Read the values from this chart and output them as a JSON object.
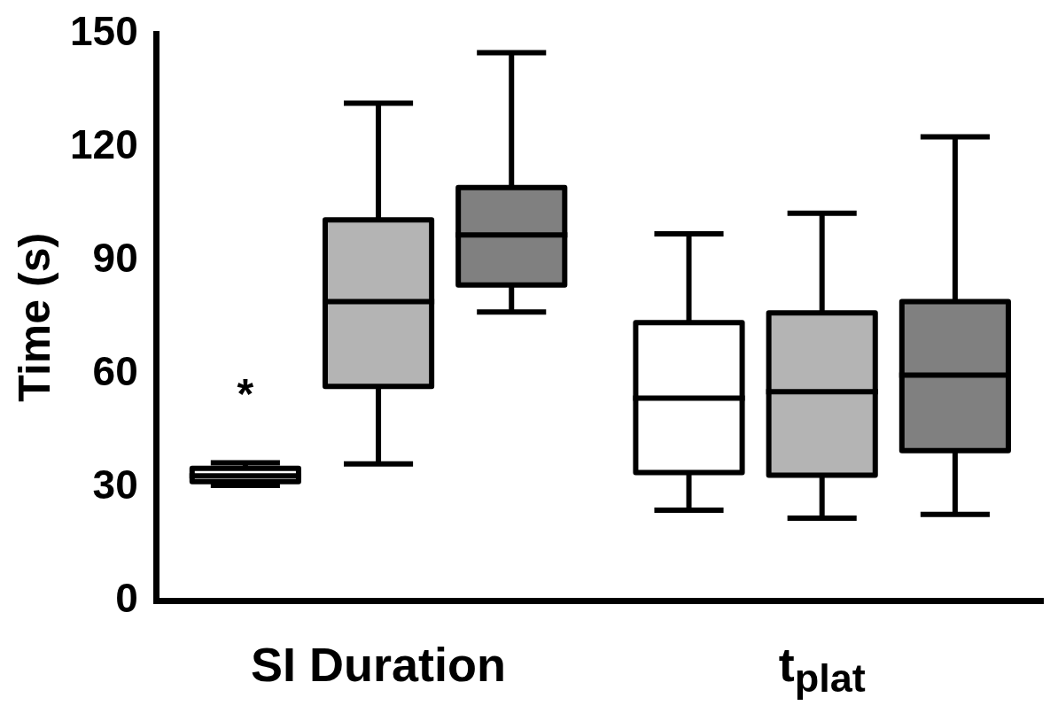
{
  "chart_data": {
    "type": "box",
    "ylabel": "Time (s)",
    "categories": [
      "SI Duration",
      "t$_{plat}$"
    ],
    "ylim": [
      0,
      150
    ],
    "yticks": [
      0,
      30,
      60,
      90,
      120,
      150
    ],
    "grid": false,
    "series": [
      {
        "color": "#ffffff",
        "boxes": [
          {
            "low": 30.5,
            "q1": 31.5,
            "median": 33,
            "q3": 35,
            "high": 36.5
          },
          {
            "low": 23.9,
            "q1": 33.9,
            "median": 53.6,
            "q3": 73.6,
            "high": 96.4
          }
        ]
      },
      {
        "color": "#b4b4b4",
        "boxes": [
          {
            "low": 36.2,
            "q1": 56.7,
            "median": 79.2,
            "q3": 100.8,
            "high": 131
          },
          {
            "low": 21.8,
            "q1": 33.2,
            "median": 55.3,
            "q3": 76.2,
            "high": 101.9
          }
        ]
      },
      {
        "color": "#808080",
        "boxes": [
          {
            "low": 76.4,
            "q1": 83.6,
            "median": 96.8,
            "q3": 109.4,
            "high": 144.4
          },
          {
            "low": 22.8,
            "q1": 39.7,
            "median": 59.7,
            "q3": 79.2,
            "high": 122.1
          }
        ]
      }
    ],
    "annotations": [
      "*"
    ]
  }
}
